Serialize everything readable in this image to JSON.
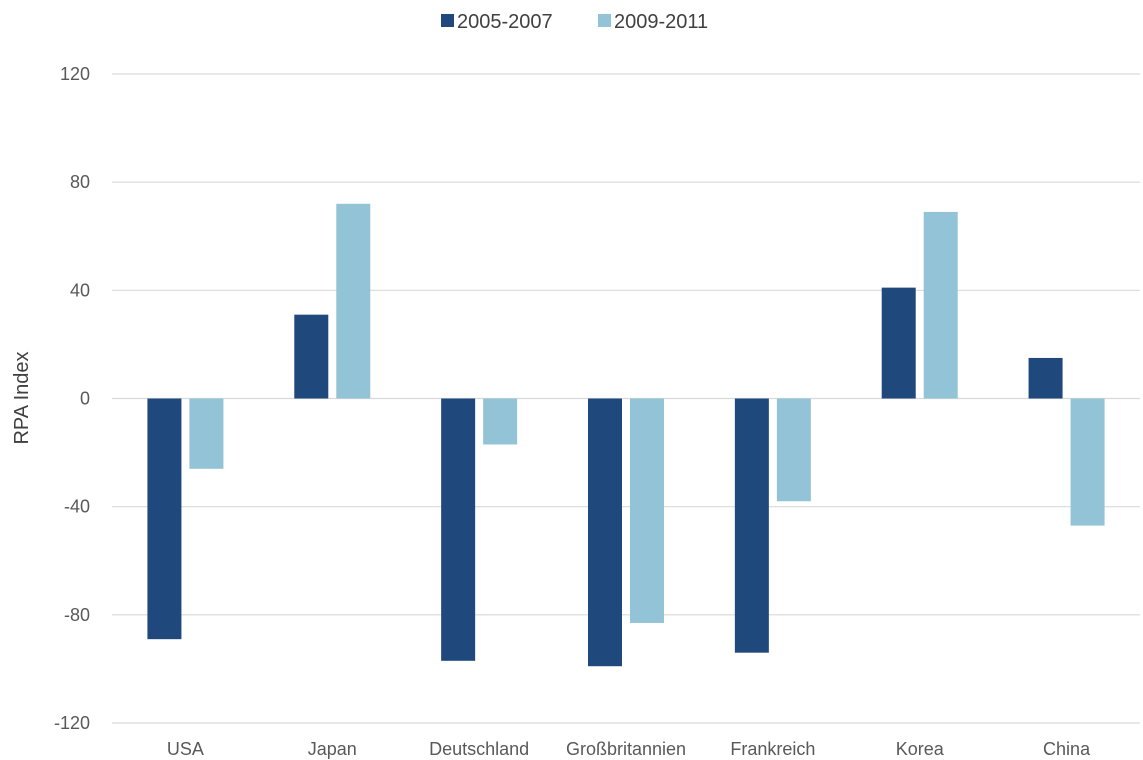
{
  "chart_data": {
    "type": "bar",
    "title": "",
    "xlabel": "",
    "ylabel": "RPA Index",
    "ylim": [
      -120,
      120
    ],
    "yticks": [
      120,
      80,
      40,
      0,
      -40,
      -80,
      -120
    ],
    "grid": true,
    "legend_position": "top-center",
    "categories": [
      "USA",
      "Japan",
      "Deutschland",
      "Großbritannien",
      "Frankreich",
      "Korea",
      "China"
    ],
    "series": [
      {
        "name": "2005-2007",
        "color": "#1f497d",
        "values": [
          -89,
          31,
          -97,
          -99,
          -94,
          41,
          15
        ]
      },
      {
        "name": "2009-2011",
        "color": "#93c3d6",
        "values": [
          -26,
          72,
          -17,
          -83,
          -38,
          69,
          -47
        ]
      }
    ]
  }
}
